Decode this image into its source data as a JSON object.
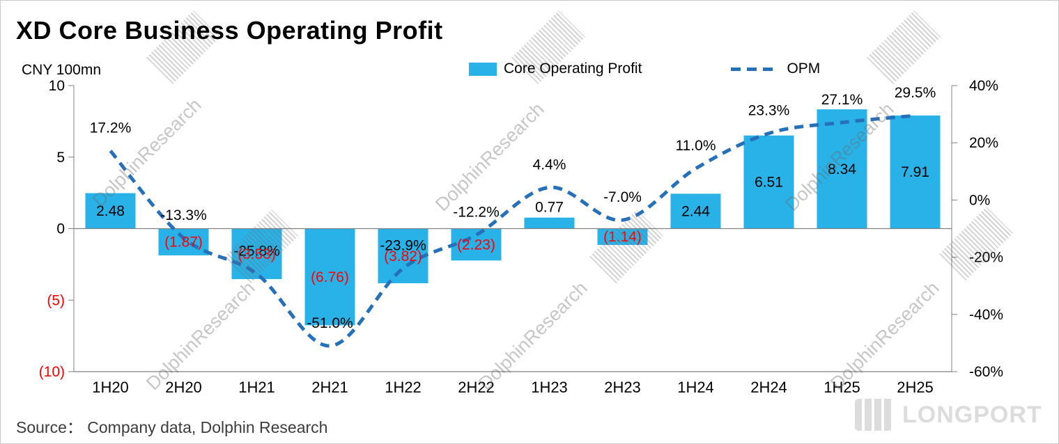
{
  "title": "XD Core Business Operating Profit",
  "unit_label": "CNY 100mn",
  "legend": {
    "bar": "Core Operating Profit",
    "line": "OPM"
  },
  "source": "Source： Company data, Dolphin Research",
  "watermark_text": "DolphinResearch",
  "logo_text": "LONGPORT",
  "colors": {
    "bar": "#29B2E8",
    "line": "#2570B9",
    "negative_label": "#FF0000",
    "axis": "#808080",
    "text": "#000000"
  },
  "chart_data": {
    "type": "bar",
    "subtype": "combo-bar-line-dual-axis",
    "title": "XD Core Business Operating Profit",
    "ylabel_left": "CNY 100mn",
    "grid": false,
    "legend_position": "top",
    "categories": [
      "1H20",
      "2H20",
      "1H21",
      "2H21",
      "1H22",
      "2H22",
      "1H23",
      "2H23",
      "1H24",
      "2H24",
      "1H25",
      "2H25"
    ],
    "series": [
      {
        "name": "Core Operating Profit",
        "type": "bar",
        "axis": "left",
        "values": [
          2.48,
          -1.87,
          -3.53,
          -6.76,
          -3.82,
          -2.23,
          0.77,
          -1.14,
          2.44,
          6.51,
          8.34,
          7.91
        ],
        "labels": [
          "2.48",
          "(1.87)",
          "(3.53)",
          "(6.76)",
          "(3.82)",
          "(2.23)",
          "0.77",
          "(1.14)",
          "2.44",
          "6.51",
          "8.34",
          "7.91"
        ]
      },
      {
        "name": "OPM",
        "type": "line",
        "axis": "right",
        "values": [
          17.2,
          -13.3,
          -25.8,
          -51.0,
          -23.9,
          -12.2,
          4.4,
          -7.0,
          11.0,
          23.3,
          27.1,
          29.5
        ],
        "labels": [
          "17.2%",
          "-13.3%",
          "-25.8%",
          "-51.0%",
          "-23.9%",
          "-12.2%",
          "4.4%",
          "-7.0%",
          "11.0%",
          "23.3%",
          "27.1%",
          "29.5%"
        ]
      }
    ],
    "left_axis": {
      "min": -10,
      "max": 10,
      "ticks": [
        10,
        5,
        0,
        -5,
        -10
      ],
      "tick_labels": [
        "10",
        "5",
        "0",
        "(5)",
        "(10)"
      ]
    },
    "right_axis": {
      "min": -60,
      "max": 40,
      "ticks": [
        40,
        20,
        0,
        -20,
        -40,
        -60
      ],
      "tick_labels": [
        "40%",
        "20%",
        "0%",
        "-20%",
        "-40%",
        "-60%"
      ]
    }
  }
}
